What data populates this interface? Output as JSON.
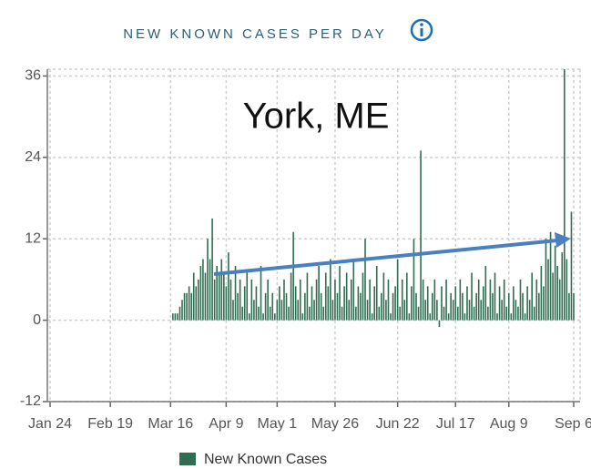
{
  "chart_data": {
    "type": "bar",
    "title": "NEW KNOWN CASES PER DAY",
    "annotation": "York, ME",
    "categories": [
      "Jan 24",
      null,
      null,
      null,
      null,
      null,
      null,
      null,
      null,
      null,
      null,
      null,
      null,
      null,
      null,
      null,
      null,
      null,
      null,
      null,
      null,
      null,
      null,
      null,
      null,
      null,
      "Feb 19",
      null,
      null,
      null,
      null,
      null,
      null,
      null,
      null,
      null,
      null,
      null,
      null,
      null,
      null,
      null,
      null,
      null,
      null,
      null,
      null,
      null,
      null,
      null,
      null,
      null,
      "Mar 16",
      null,
      null,
      null,
      null,
      null,
      null,
      null,
      null,
      null,
      null,
      null,
      null,
      null,
      null,
      null,
      null,
      null,
      null,
      null,
      null,
      null,
      null,
      null,
      "Apr 9",
      null,
      null,
      null,
      null,
      null,
      null,
      null,
      null,
      null,
      null,
      null,
      null,
      null,
      null,
      null,
      null,
      null,
      null,
      null,
      null,
      null,
      "May 1",
      null,
      null,
      null,
      null,
      null,
      null,
      null,
      null,
      null,
      null,
      null,
      null,
      null,
      null,
      null,
      null,
      null,
      null,
      null,
      null,
      null,
      null,
      null,
      null,
      "May 26",
      null,
      null,
      null,
      null,
      null,
      null,
      null,
      null,
      null,
      null,
      null,
      null,
      null,
      null,
      null,
      null,
      null,
      null,
      null,
      null,
      null,
      null,
      null,
      null,
      null,
      null,
      "Jun 22",
      null,
      null,
      null,
      null,
      null,
      null,
      null,
      null,
      null,
      null,
      null,
      null,
      null,
      null,
      null,
      null,
      null,
      null,
      null,
      null,
      null,
      null,
      null,
      null,
      "Jul 17",
      null,
      null,
      null,
      null,
      null,
      null,
      null,
      null,
      null,
      null,
      null,
      null,
      null,
      null,
      null,
      null,
      null,
      null,
      null,
      null,
      null,
      null,
      "Aug 9",
      null,
      null,
      null,
      null,
      null,
      null,
      null,
      null,
      null,
      null,
      null,
      null,
      null,
      null,
      null,
      null,
      null,
      null,
      null,
      null,
      null,
      null,
      null,
      null,
      null,
      null,
      null,
      "Sep 6"
    ],
    "series": [
      {
        "name": "New Known Cases",
        "color": "#2f6e52",
        "values": [
          null,
          null,
          null,
          null,
          null,
          null,
          null,
          null,
          null,
          null,
          null,
          null,
          null,
          null,
          null,
          null,
          null,
          null,
          null,
          null,
          null,
          null,
          null,
          null,
          null,
          null,
          null,
          null,
          null,
          null,
          null,
          null,
          null,
          null,
          null,
          null,
          null,
          null,
          null,
          null,
          null,
          null,
          null,
          null,
          null,
          null,
          null,
          null,
          null,
          null,
          null,
          null,
          null,
          1,
          1,
          1,
          2,
          3,
          4,
          4,
          5,
          4,
          7,
          5,
          6,
          8,
          9,
          7,
          12,
          9,
          15,
          6,
          8,
          7,
          9,
          7,
          5,
          10,
          6,
          3,
          8,
          4,
          6,
          2,
          5,
          7,
          1,
          6,
          3,
          5,
          2,
          8,
          1,
          4,
          6,
          2,
          4,
          1,
          3,
          5,
          3,
          6,
          4,
          2,
          7,
          13,
          5,
          3,
          6,
          1,
          4,
          7,
          2,
          5,
          3,
          6,
          8,
          4,
          2,
          7,
          5,
          9,
          3,
          6,
          4,
          8,
          2,
          5,
          7,
          3,
          6,
          9,
          2,
          5,
          4,
          7,
          12,
          3,
          6,
          1,
          5,
          8,
          2,
          4,
          7,
          3,
          6,
          1,
          4,
          5,
          9,
          2,
          6,
          3,
          7,
          1,
          5,
          12,
          4,
          2,
          25,
          6,
          3,
          5,
          1,
          4,
          6,
          3,
          -1,
          5,
          2,
          6,
          1,
          4,
          3,
          5,
          2,
          6,
          4,
          1,
          5,
          3,
          7,
          2,
          4,
          6,
          3,
          5,
          8,
          2,
          6,
          4,
          7,
          1,
          5,
          3,
          6,
          2,
          4,
          1,
          5,
          3,
          2,
          6,
          4,
          1,
          5,
          3,
          7,
          2,
          6,
          4,
          8,
          5,
          12,
          9,
          13,
          7,
          11,
          8,
          6,
          10,
          37,
          9,
          4,
          16,
          4
        ]
      }
    ],
    "ylim": [
      -12,
      37
    ],
    "yticks": [
      -12,
      0,
      12,
      24,
      36
    ],
    "grid": true
  }
}
